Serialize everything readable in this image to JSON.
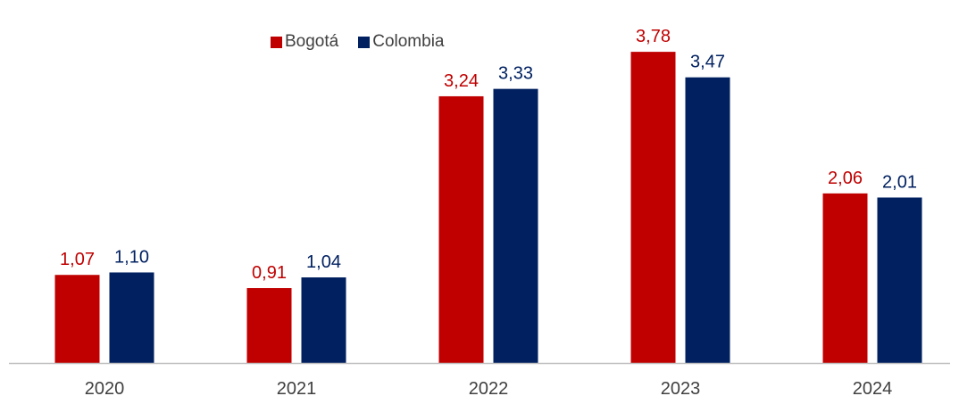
{
  "chart_data": {
    "type": "bar",
    "categories": [
      "2020",
      "2021",
      "2022",
      "2023",
      "2024"
    ],
    "series": [
      {
        "name": "Bogotá",
        "color": "#c00000",
        "values": [
          1.07,
          0.91,
          3.24,
          3.78,
          2.06
        ],
        "labels": [
          "1,07",
          "0,91",
          "3,24",
          "3,78",
          "2,06"
        ]
      },
      {
        "name": "Colombia",
        "color": "#002060",
        "values": [
          1.1,
          1.04,
          3.33,
          3.47,
          2.01
        ],
        "labels": [
          "1,10",
          "1,04",
          "3,33",
          "3,47",
          "2,01"
        ]
      }
    ],
    "title": "",
    "xlabel": "",
    "ylabel": "",
    "ylim": [
      0,
      4.0
    ],
    "grid": false,
    "legend_position": "top-center",
    "axis_color": "#bfbfbf",
    "tick_label_color": "#404040"
  }
}
